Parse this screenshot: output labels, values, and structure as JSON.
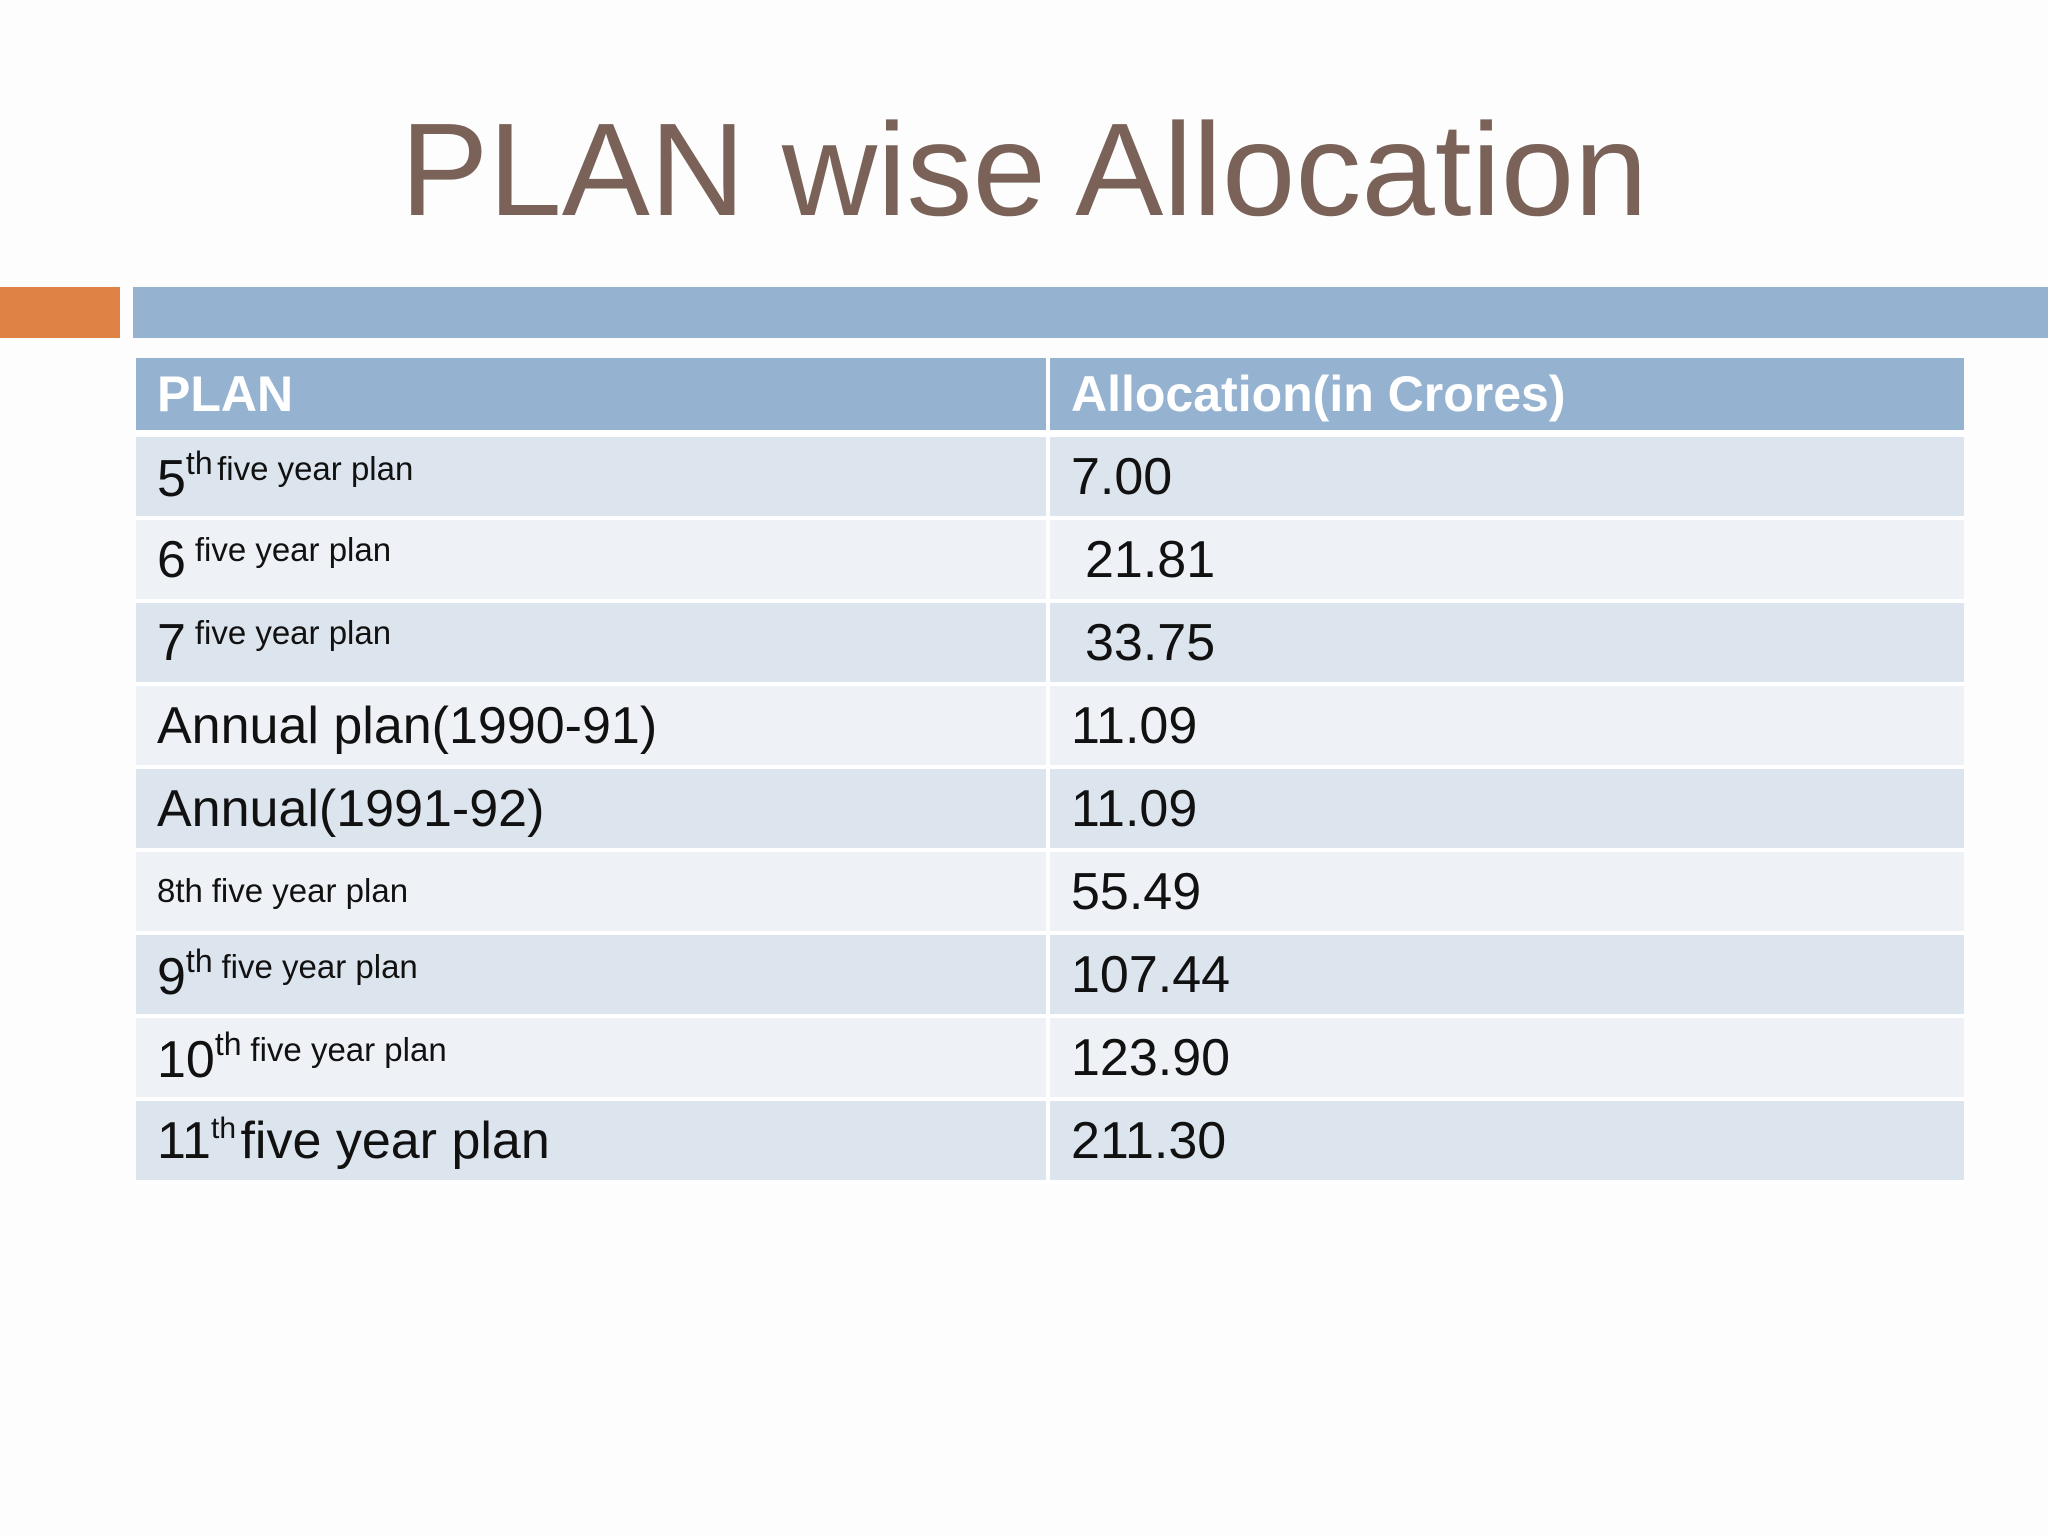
{
  "slide": {
    "title": "PLAN wise Allocation"
  },
  "table": {
    "headers": [
      "PLAN",
      "Allocation(in Crores)"
    ],
    "rows": [
      {
        "num": "5",
        "suffix": "th",
        "rest": "five year plan",
        "value": "7.00"
      },
      {
        "num": "6",
        "suffix": "",
        "rest": "five year plan",
        "value": "21.81"
      },
      {
        "num": "7",
        "suffix": "",
        "rest": "five year plan",
        "value": "33.75"
      },
      {
        "label": "Annual plan(1990-91)",
        "value": "11.09"
      },
      {
        "label": "Annual(1991-92)",
        "value": "11.09"
      },
      {
        "label": "8th",
        "rest": "five year plan",
        "value": "55.49"
      },
      {
        "num": "9",
        "suffix": "th",
        "rest": "five year plan",
        "value": "107.44"
      },
      {
        "num": "10",
        "suffix": "th",
        "rest": "five year plan",
        "value": "123.90"
      },
      {
        "num": "11",
        "suffix": "th",
        "rest": "five year plan",
        "value": "211.30"
      }
    ]
  },
  "colors": {
    "title": "#7a6259",
    "accent_orange": "#de8345",
    "accent_blue": "#95b3d1",
    "row_dark": "#dce4ed",
    "row_light": "#eef1f6"
  }
}
